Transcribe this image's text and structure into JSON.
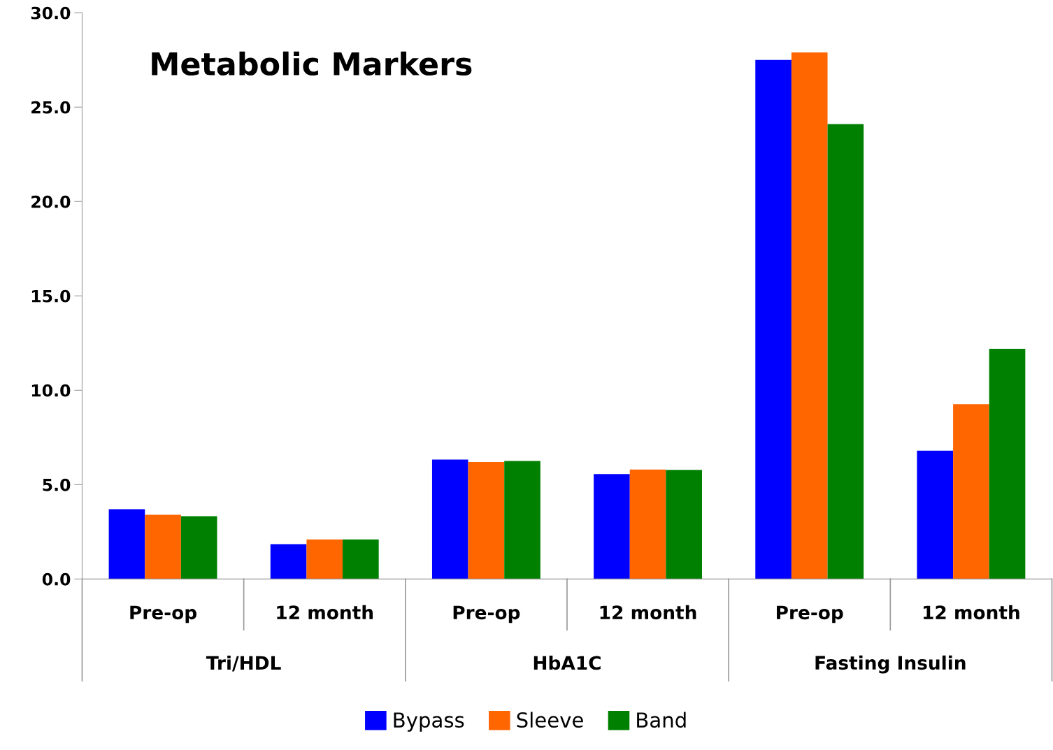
{
  "chart_data": {
    "type": "bar",
    "title": "Metabolic Markers",
    "categories": [
      "Pre-op",
      "12 month",
      "Pre-op",
      "12 month",
      "Pre-op",
      "12 month"
    ],
    "annotations": [
      "Tri/HDL",
      "HbA1C",
      "Fasting Insulin"
    ],
    "series": [
      {
        "name": "Bypass",
        "color": "#0000ff",
        "values": [
          3.7,
          1.85,
          6.33,
          5.56,
          27.5,
          6.8
        ]
      },
      {
        "name": "Sleeve",
        "color": "#ff6600",
        "values": [
          3.4,
          2.1,
          6.2,
          5.8,
          27.9,
          9.26
        ]
      },
      {
        "name": "Band",
        "color": "#008000",
        "values": [
          3.33,
          2.1,
          6.25,
          5.78,
          24.1,
          12.2
        ]
      }
    ],
    "ylim": [
      0,
      30
    ],
    "yticks": [
      {
        "value": 0,
        "label": "0.0"
      },
      {
        "value": 5,
        "label": "5.0"
      },
      {
        "value": 10,
        "label": "10.0"
      },
      {
        "value": 15,
        "label": "15.0"
      },
      {
        "value": 20,
        "label": "20.0"
      },
      {
        "value": 25,
        "label": "25.0"
      },
      {
        "value": 30,
        "label": "30.0"
      }
    ],
    "grid": false,
    "legend": "bottom"
  }
}
